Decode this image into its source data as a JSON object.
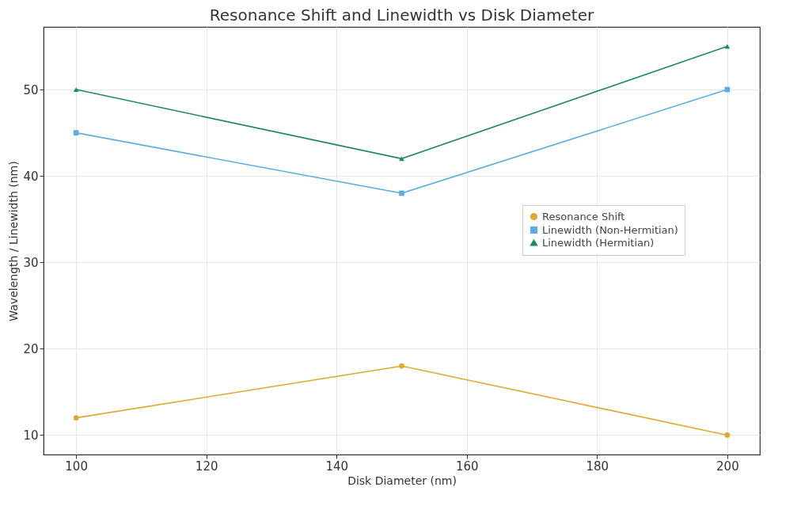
{
  "chart_data": {
    "type": "line",
    "title": "Resonance Shift and Linewidth vs Disk Diameter",
    "xlabel": "Disk Diameter (nm)",
    "ylabel": "Wavelength / Linewidth (nm)",
    "x": [
      100,
      150,
      200
    ],
    "series": [
      {
        "name": "Resonance Shift",
        "color": "#e0a82e",
        "marker": "circle",
        "values": [
          12,
          18,
          10
        ]
      },
      {
        "name": "Linewidth (Non-Hermitian)",
        "color": "#5dade2",
        "marker": "square",
        "values": [
          45,
          38,
          50
        ]
      },
      {
        "name": "Linewidth (Hermitian)",
        "color": "#1f8a5e",
        "marker": "triangle",
        "values": [
          50,
          42,
          55
        ]
      }
    ],
    "xlim": [
      95,
      205
    ],
    "xticks": [
      100,
      120,
      140,
      160,
      180,
      200
    ],
    "ylim": [
      7.75,
      57.25
    ],
    "yticks": [
      10,
      20,
      30,
      40,
      50
    ],
    "grid": true,
    "legend": "right",
    "line_style": "solid"
  }
}
